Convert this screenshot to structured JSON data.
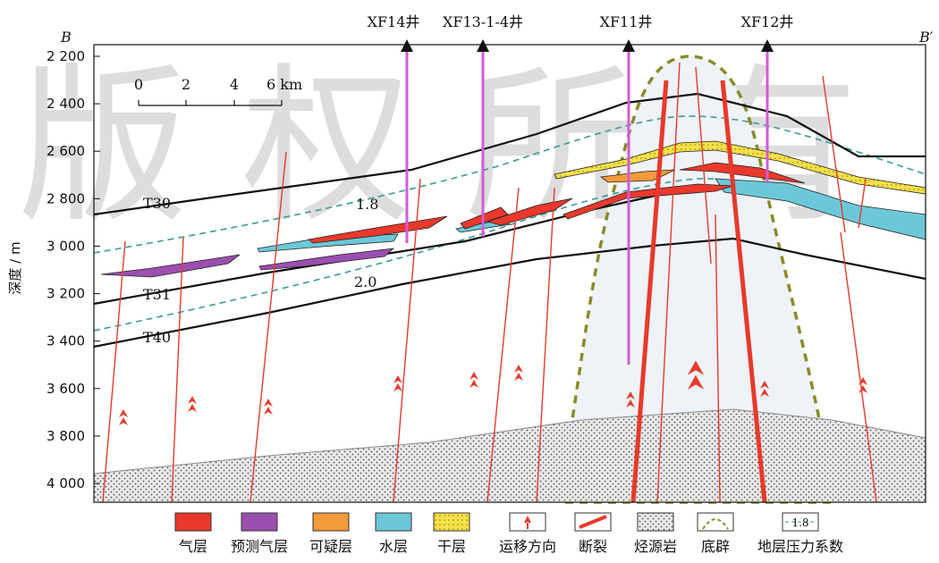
{
  "section": {
    "left_label": "B",
    "right_label": "B′"
  },
  "wells": [
    {
      "name": "XF14井"
    },
    {
      "name": "XF13-1-4井"
    },
    {
      "name": "XF11井"
    },
    {
      "name": "XF12井"
    }
  ],
  "depth_axis": {
    "label": "深度 / m",
    "ticks": [
      {
        "value": 2200,
        "label": "2 200"
      },
      {
        "value": 2400,
        "label": "2 400"
      },
      {
        "value": 2600,
        "label": "2 600"
      },
      {
        "value": 2800,
        "label": "2 800"
      },
      {
        "value": 3000,
        "label": "3 000"
      },
      {
        "value": 3200,
        "label": "3 200"
      },
      {
        "value": 3400,
        "label": "3 400"
      },
      {
        "value": 3600,
        "label": "3 600"
      },
      {
        "value": 3800,
        "label": "3 800"
      },
      {
        "value": 4000,
        "label": "4 000"
      }
    ]
  },
  "scale_bar": {
    "labels": [
      "0",
      "2",
      "4",
      "6 km"
    ]
  },
  "horizons": [
    "T30",
    "T31",
    "T40"
  ],
  "pressure_labels": [
    "1.8",
    "2.0"
  ],
  "watermark": "版权所有",
  "legend": {
    "items": [
      "气层",
      "预测气层",
      "可疑层",
      "水层",
      "干层",
      "运移方向",
      "断裂",
      "烃源岩",
      "底辟",
      "地层压力系数"
    ],
    "pressure_sample": "1.8"
  }
}
